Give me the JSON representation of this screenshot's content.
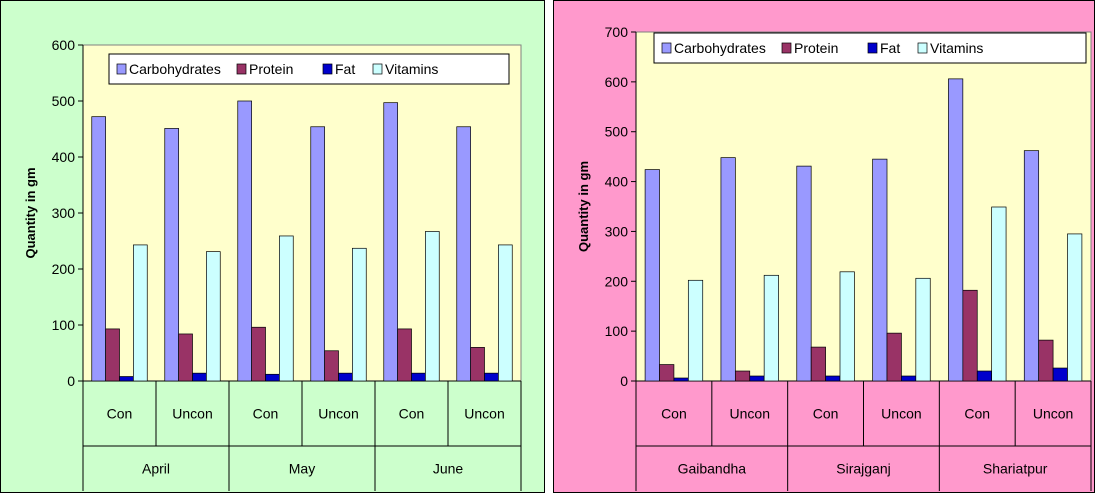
{
  "chart_data": [
    {
      "type": "bar",
      "title": "",
      "ylabel": "Quantity in gm",
      "xlabel": "",
      "ylim": [
        0,
        600
      ],
      "yticks": [
        "0",
        "100",
        "200",
        "300",
        "400",
        "500",
        "600"
      ],
      "groups": [
        "April",
        "May",
        "June"
      ],
      "categories": [
        "Con",
        "Uncon",
        "Con",
        "Uncon",
        "Con",
        "Uncon"
      ],
      "legend_position": "top",
      "series": [
        {
          "name": "Carbohydrates",
          "color": "#9999ff",
          "values": [
            472,
            451,
            500,
            454,
            497,
            454
          ]
        },
        {
          "name": "Protein",
          "color": "#993366",
          "values": [
            93,
            84,
            96,
            54,
            93,
            60
          ]
        },
        {
          "name": "Fat",
          "color": "#0000cc",
          "values": [
            8,
            14,
            12,
            14,
            14,
            14
          ]
        },
        {
          "name": "Vitamins",
          "color": "#ccffff",
          "values": [
            243,
            231,
            259,
            237,
            267,
            243
          ]
        }
      ]
    },
    {
      "type": "bar",
      "title": "",
      "ylabel": "Quantity in gm",
      "xlabel": "",
      "ylim": [
        0,
        700
      ],
      "yticks": [
        "0",
        "100",
        "200",
        "300",
        "400",
        "500",
        "600",
        "700"
      ],
      "groups": [
        "Gaibandha",
        "Sirajganj",
        "Shariatpur"
      ],
      "categories": [
        "Con",
        "Uncon",
        "Con",
        "Uncon",
        "Con",
        "Uncon"
      ],
      "legend_position": "top",
      "series": [
        {
          "name": "Carbohydrates",
          "color": "#9999ff",
          "values": [
            424,
            448,
            431,
            445,
            606,
            462
          ]
        },
        {
          "name": "Protein",
          "color": "#993366",
          "values": [
            33,
            20,
            68,
            96,
            182,
            82
          ]
        },
        {
          "name": "Fat",
          "color": "#0000cc",
          "values": [
            6,
            10,
            10,
            10,
            20,
            26
          ]
        },
        {
          "name": "Vitamins",
          "color": "#ccffff",
          "values": [
            202,
            212,
            219,
            206,
            349,
            295
          ]
        }
      ]
    }
  ]
}
